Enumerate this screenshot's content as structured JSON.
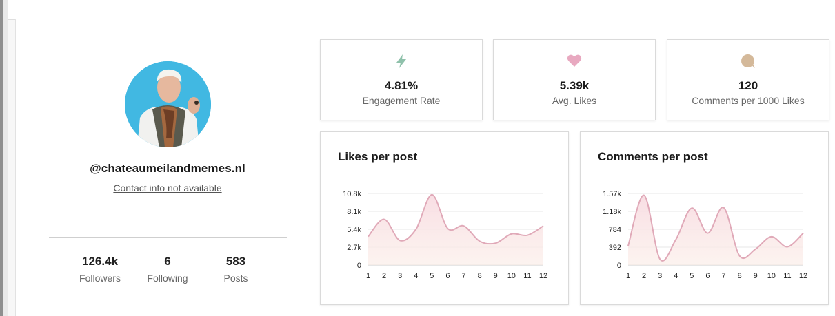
{
  "profile": {
    "username": "@chateaumeilandmemes.nl",
    "contact": "Contact info not available",
    "avatar_bg": "#41b8e2"
  },
  "stats": [
    {
      "value": "126.4k",
      "label": "Followers"
    },
    {
      "value": "6",
      "label": "Following"
    },
    {
      "value": "583",
      "label": "Posts"
    }
  ],
  "metrics": [
    {
      "icon": "lightning-icon",
      "color": "#8fc1ab",
      "value": "4.81%",
      "label": "Engagement Rate"
    },
    {
      "icon": "heart-icon",
      "color": "#e8a9c0",
      "value": "5.39k",
      "label": "Avg. Likes"
    },
    {
      "icon": "comment-icon",
      "color": "#d4b99a",
      "value": "120",
      "label": "Comments per 1000 Likes"
    }
  ],
  "chart_data": [
    {
      "type": "area",
      "title": "Likes per post",
      "x": [
        1,
        2,
        3,
        4,
        5,
        6,
        7,
        8,
        9,
        10,
        11,
        12
      ],
      "values": [
        4300,
        6900,
        3700,
        5400,
        10600,
        5500,
        5900,
        3600,
        3300,
        4700,
        4500,
        5900
      ],
      "ylim": [
        0,
        10800
      ],
      "yticks": [
        "0",
        "2.7k",
        "5.4k",
        "8.1k",
        "10.8k"
      ],
      "line_color": "#e0a9b8",
      "fill_color": "#f8dce2"
    },
    {
      "type": "area",
      "title": "Comments per post",
      "x": [
        1,
        2,
        3,
        4,
        5,
        6,
        7,
        8,
        9,
        10,
        11,
        12
      ],
      "values": [
        420,
        1530,
        130,
        560,
        1250,
        700,
        1260,
        200,
        350,
        620,
        400,
        700
      ],
      "ylim": [
        0,
        1570
      ],
      "yticks": [
        "0",
        "392",
        "784",
        "1.18k",
        "1.57k"
      ],
      "line_color": "#e0a9b8",
      "fill_color": "#f8dce2"
    }
  ]
}
